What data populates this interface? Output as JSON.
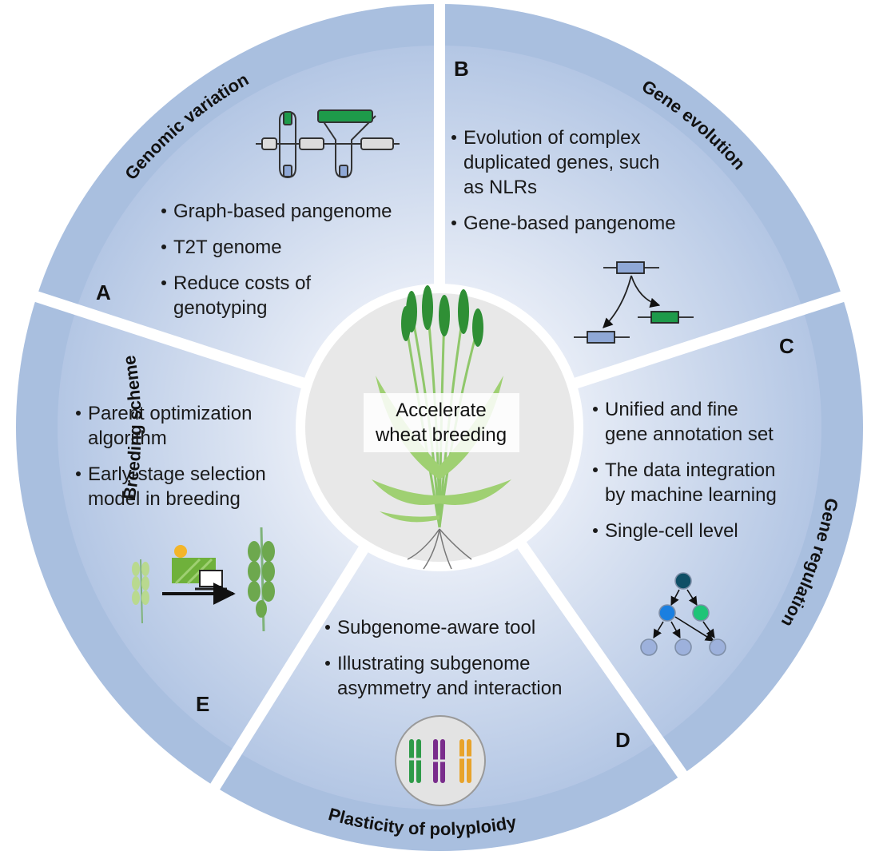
{
  "center": {
    "line1": "Accelerate",
    "line2": "wheat breeding"
  },
  "sections": {
    "A": {
      "letter": "A",
      "title": "Genomic variation",
      "bullets": [
        {
          "lines": [
            "Graph-based pangenome"
          ]
        },
        {
          "lines": [
            "T2T genome"
          ]
        },
        {
          "lines": [
            "Reduce costs of",
            "genotyping"
          ]
        }
      ]
    },
    "B": {
      "letter": "B",
      "title": "Gene evolution",
      "bullets": [
        {
          "lines": [
            "Evolution of complex",
            "duplicated genes, such",
            "as NLRs"
          ]
        },
        {
          "lines": [
            "Gene-based pangenome"
          ]
        }
      ]
    },
    "C": {
      "letter": "C",
      "title": "Gene regulation",
      "bullets": [
        {
          "lines": [
            "Unified and fine",
            "gene annotation set"
          ]
        },
        {
          "lines": [
            "The data integration",
            "by machine learning"
          ]
        },
        {
          "lines": [
            "Single-cell level"
          ]
        }
      ]
    },
    "D": {
      "letter": "D",
      "title": "Plasticity of polyploidy",
      "bullets": [
        {
          "lines": [
            "Subgenome-aware tool"
          ]
        },
        {
          "lines": [
            "Illustrating subgenome",
            "asymmetry and interaction"
          ]
        }
      ]
    },
    "E": {
      "letter": "E",
      "title": "Breeding scheme",
      "bullets": [
        {
          "lines": [
            "Parent optimization",
            "algorithm"
          ]
        },
        {
          "lines": [
            "Early-stage selection",
            "model in breeding"
          ]
        }
      ]
    }
  },
  "colors": {
    "ring": "#a9bfdf",
    "panel_light": "#f2f5fb",
    "panel_dark": "#b3c6e4",
    "gene_blue": "#8fa8d6",
    "gene_green": "#1e9a4a",
    "gene_gray": "#dcdcdc",
    "node_dark": "#0f4f66",
    "node_blue": "#1a7fe0",
    "node_green": "#1ec477",
    "node_light": "#9db1dc",
    "chrom_green": "#2e9a48",
    "chrom_purple": "#7a2d8c",
    "chrom_orange": "#e8a32a"
  },
  "icons": [
    "graph-pangenome-icon",
    "gene-duplication-icon",
    "regulatory-network-icon",
    "chromosomes-icon",
    "breeding-pipeline-icon",
    "wheat-plant-icon"
  ]
}
